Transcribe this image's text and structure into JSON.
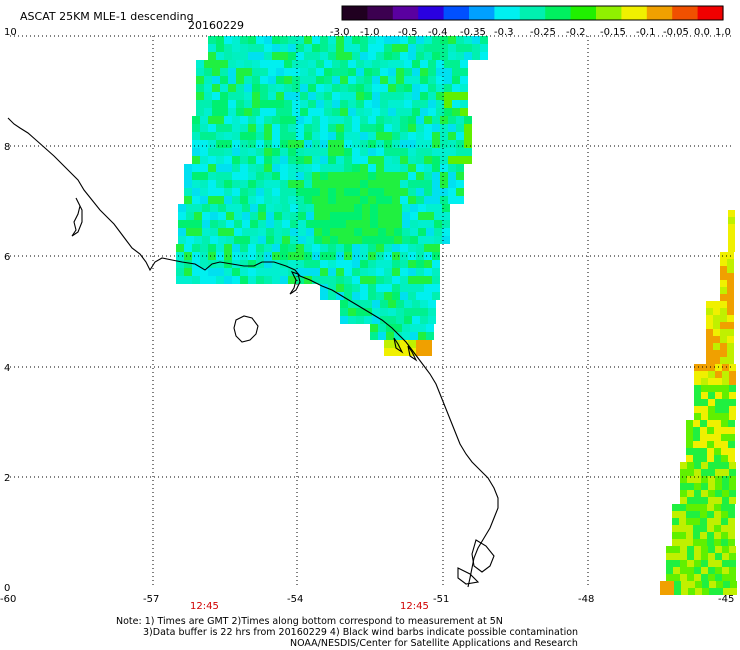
{
  "title": "ASCAT 25KM MLE-1 descending",
  "date": "20160229",
  "colorbar": {
    "ticks": [
      "-3.0",
      "-1.0",
      "-0.5",
      "-0.4",
      "-0.35",
      "-0.3",
      "-0.25",
      "-0.2",
      "-0.15",
      "-0.1",
      "-0.05",
      "0.0",
      "1.0"
    ],
    "colors": [
      "#200020",
      "#3c0050",
      "#5a00a0",
      "#2a00e0",
      "#0050ff",
      "#00a0ff",
      "#00f0f0",
      "#00f0b0",
      "#00f060",
      "#20f000",
      "#90f000",
      "#f0f000",
      "#f0a000",
      "#f05000",
      "#f00000"
    ]
  },
  "axes": {
    "lat_labels": [
      "10",
      "8",
      "6",
      "4",
      "2",
      "0"
    ],
    "lon_labels": [
      "-60",
      "-57",
      "-54",
      "-51",
      "-48",
      "-45"
    ]
  },
  "time_labels": [
    "12:45",
    "12:45"
  ],
  "notes": [
    "Note: 1) Times are GMT 2)Times along bottom correspond to measurement at 5N",
    "3)Data buffer is 22 hrs from 20160229 4) Black wind barbs indicate possible contamination",
    "NOAA/NESDIS/Center for Satellite Applications and Research"
  ]
}
